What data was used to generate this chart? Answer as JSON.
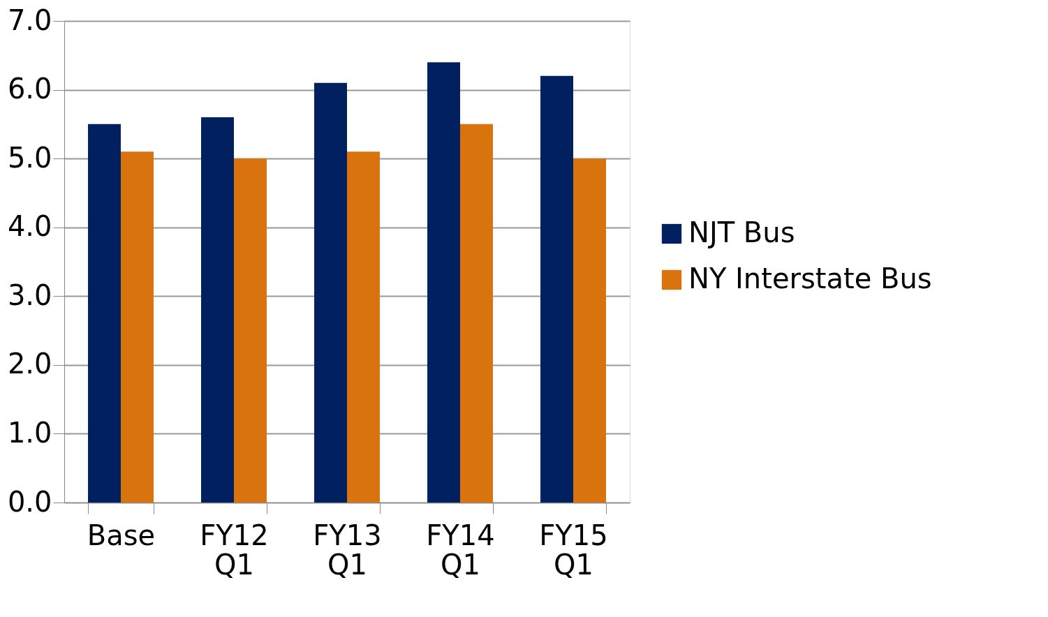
{
  "chart_data": {
    "type": "bar",
    "categories": [
      "Base",
      "FY12 Q1",
      "FY13 Q1",
      "FY14 Q1",
      "FY15 Q1"
    ],
    "series": [
      {
        "name": "NJT Bus",
        "color": "#002060",
        "values": [
          5.5,
          5.6,
          6.1,
          6.4,
          6.2
        ]
      },
      {
        "name": "NY Interstate Bus",
        "color": "#d9730d",
        "values": [
          5.1,
          5.0,
          5.1,
          5.5,
          5.0
        ]
      }
    ],
    "ylim": [
      0,
      7
    ],
    "yticks": [
      {
        "value": 0,
        "label": "0.0"
      },
      {
        "value": 1,
        "label": "1.0"
      },
      {
        "value": 2,
        "label": "2.0"
      },
      {
        "value": 3,
        "label": "3.0"
      },
      {
        "value": 4,
        "label": "4.0"
      },
      {
        "value": 5,
        "label": "5.0"
      },
      {
        "value": 6,
        "label": "6.0"
      },
      {
        "value": 7,
        "label": "7.0"
      }
    ],
    "grid": "y",
    "legend": "right"
  }
}
